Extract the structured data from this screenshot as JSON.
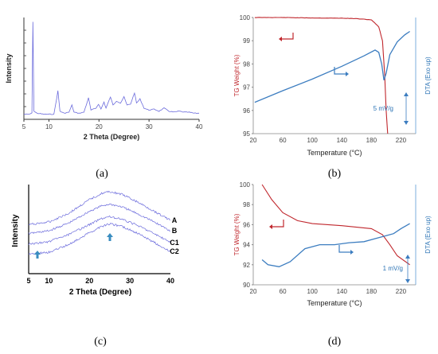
{
  "colors": {
    "xrd": "#6b6bdc",
    "tg": "#c0272d",
    "dta": "#3c7dc0",
    "axis": "#555555"
  },
  "chart_data": [
    {
      "id": "a",
      "caption": "(a)",
      "type": "line",
      "xlabel": "2 Theta (Degree)",
      "ylabel": "Intensity",
      "xlim": [
        5,
        40
      ],
      "xticks": [
        "5",
        "10",
        "20",
        "30",
        "40"
      ],
      "series": [
        {
          "values": [
            [
              5,
              5
            ],
            [
              6,
              5
            ],
            [
              6.6,
              6
            ],
            [
              6.8,
              96
            ],
            [
              7,
              8
            ],
            [
              7.6,
              6
            ],
            [
              9,
              5
            ],
            [
              11,
              5
            ],
            [
              11.8,
              28
            ],
            [
              12.2,
              8
            ],
            [
              13,
              6
            ],
            [
              14,
              7
            ],
            [
              14.6,
              14
            ],
            [
              15,
              7
            ],
            [
              16,
              6
            ],
            [
              17,
              7
            ],
            [
              17.9,
              21
            ],
            [
              18.4,
              9
            ],
            [
              19.4,
              11
            ],
            [
              19.9,
              15
            ],
            [
              20.4,
              10
            ],
            [
              21,
              17
            ],
            [
              21.4,
              11
            ],
            [
              22.3,
              22
            ],
            [
              22.8,
              14
            ],
            [
              23.5,
              18
            ],
            [
              24.3,
              16
            ],
            [
              25,
              22
            ],
            [
              25.6,
              14
            ],
            [
              26.3,
              15
            ],
            [
              27.1,
              26
            ],
            [
              27.5,
              16
            ],
            [
              28.2,
              20
            ],
            [
              29,
              11
            ],
            [
              30,
              9
            ],
            [
              31,
              10
            ],
            [
              32,
              8
            ],
            [
              33,
              11
            ],
            [
              34,
              8
            ],
            [
              35,
              7
            ],
            [
              36,
              8
            ],
            [
              37,
              7
            ],
            [
              38,
              7
            ],
            [
              39,
              6
            ],
            [
              40,
              6
            ]
          ]
        }
      ]
    },
    {
      "id": "b",
      "caption": "(b)",
      "type": "line",
      "xlabel": "Temperature (°C)",
      "ylabel": "TG Weight (%)",
      "ylabel_right": "DTA (Exo up)",
      "xlim": [
        20,
        240
      ],
      "ylim": [
        95,
        100
      ],
      "xticks": [
        "20",
        "60",
        "100",
        "140",
        "180",
        "220"
      ],
      "yticks": [
        "95",
        "96",
        "97",
        "98",
        "99",
        "100"
      ],
      "scale_label": "5 mV/g",
      "series": [
        {
          "values": [
            [
              22,
              100.0
            ],
            [
              60,
              100.0
            ],
            [
              100,
              99.98
            ],
            [
              140,
              99.97
            ],
            [
              160,
              99.95
            ],
            [
              180,
              99.9
            ],
            [
              190,
              99.6
            ],
            [
              195,
              99.0
            ],
            [
              198,
              97.5
            ],
            [
              200,
              96.0
            ],
            [
              202,
              95.0
            ]
          ]
        },
        {
          "values": [
            [
              22,
              96.35
            ],
            [
              60,
              96.85
            ],
            [
              100,
              97.35
            ],
            [
              140,
              97.9
            ],
            [
              170,
              98.35
            ],
            [
              185,
              98.6
            ],
            [
              190,
              98.5
            ],
            [
              194,
              98.0
            ],
            [
              197,
              97.3
            ],
            [
              200,
              97.6
            ],
            [
              205,
              98.4
            ],
            [
              215,
              98.95
            ],
            [
              225,
              99.25
            ],
            [
              232,
              99.4
            ]
          ]
        }
      ]
    },
    {
      "id": "c",
      "caption": "(c)",
      "type": "line",
      "xlabel": "2 Theta (Degree)",
      "ylabel": "Intensity",
      "xlim": [
        5,
        40
      ],
      "xticks": [
        "5",
        "10",
        "20",
        "30",
        "40"
      ],
      "series": [
        {
          "name": "A",
          "values": [
            [
              5,
              55
            ],
            [
              10,
              58
            ],
            [
              15,
              68
            ],
            [
              20,
              83
            ],
            [
              23,
              90
            ],
            [
              25,
              92
            ],
            [
              28,
              89
            ],
            [
              32,
              80
            ],
            [
              36,
              70
            ],
            [
              40,
              60
            ]
          ]
        },
        {
          "name": "B",
          "values": [
            [
              5,
              45
            ],
            [
              10,
              48
            ],
            [
              15,
              57
            ],
            [
              20,
              70
            ],
            [
              23,
              76
            ],
            [
              25,
              78
            ],
            [
              28,
              75
            ],
            [
              32,
              67
            ],
            [
              36,
              58
            ],
            [
              40,
              48
            ]
          ]
        },
        {
          "name": "C1",
          "values": [
            [
              5,
              33
            ],
            [
              10,
              36
            ],
            [
              15,
              44
            ],
            [
              20,
              55
            ],
            [
              23,
              62
            ],
            [
              25,
              64
            ],
            [
              28,
              61
            ],
            [
              32,
              54
            ],
            [
              36,
              45
            ],
            [
              40,
              35
            ]
          ]
        },
        {
          "name": "C2",
          "values": [
            [
              5,
              22
            ],
            [
              10,
              24
            ],
            [
              15,
              33
            ],
            [
              20,
              46
            ],
            [
              23,
              53
            ],
            [
              25,
              56
            ],
            [
              28,
              53
            ],
            [
              32,
              45
            ],
            [
              36,
              35
            ],
            [
              40,
              25
            ]
          ]
        }
      ]
    },
    {
      "id": "d",
      "caption": "(d)",
      "type": "line",
      "xlabel": "Temperature (°C)",
      "ylabel": "TG Weight (%)",
      "ylabel_right": "DTA (Exo up)",
      "xlim": [
        20,
        240
      ],
      "ylim": [
        90,
        100
      ],
      "xticks": [
        "20",
        "60",
        "100",
        "140",
        "180",
        "220"
      ],
      "yticks": [
        "90",
        "92",
        "94",
        "96",
        "98",
        "100"
      ],
      "scale_label": "1 mV/g",
      "series": [
        {
          "values": [
            [
              32,
              100.0
            ],
            [
              45,
              98.5
            ],
            [
              60,
              97.2
            ],
            [
              80,
              96.4
            ],
            [
              100,
              96.1
            ],
            [
              140,
              95.9
            ],
            [
              180,
              95.6
            ],
            [
              195,
              95.0
            ],
            [
              205,
              94.0
            ],
            [
              215,
              92.9
            ],
            [
              232,
              92.0
            ]
          ]
        },
        {
          "values": [
            [
              32,
              92.5
            ],
            [
              40,
              92.0
            ],
            [
              55,
              91.8
            ],
            [
              70,
              92.3
            ],
            [
              90,
              93.6
            ],
            [
              110,
              94.0
            ],
            [
              130,
              94.0
            ],
            [
              150,
              94.2
            ],
            [
              170,
              94.3
            ],
            [
              185,
              94.6
            ],
            [
              200,
              94.9
            ],
            [
              210,
              95.1
            ],
            [
              220,
              95.6
            ],
            [
              232,
              96.1
            ]
          ]
        }
      ]
    }
  ]
}
